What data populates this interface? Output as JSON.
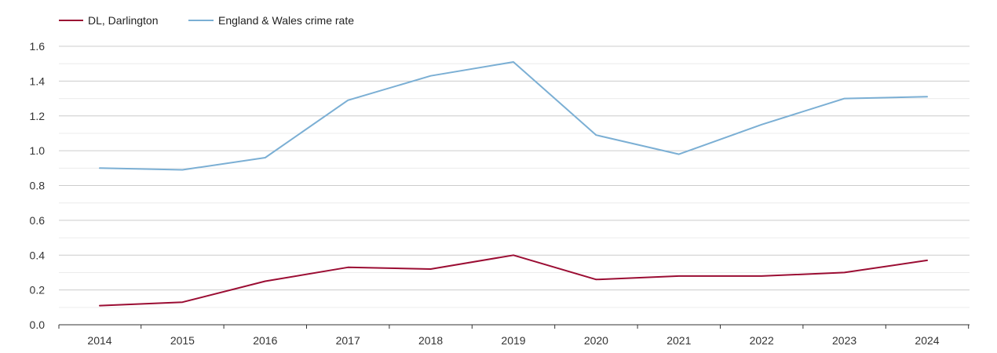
{
  "chart_data": {
    "type": "line",
    "title": "",
    "xlabel": "",
    "ylabel": "",
    "ylim": [
      0,
      1.6
    ],
    "yticks": [
      "0.0",
      "0.2",
      "0.4",
      "0.6",
      "0.8",
      "1.0",
      "1.2",
      "1.4",
      "1.6"
    ],
    "categories": [
      "2014",
      "2015",
      "2016",
      "2017",
      "2018",
      "2019",
      "2020",
      "2021",
      "2022",
      "2023",
      "2024"
    ],
    "legend_position": "top-left",
    "grid": true,
    "series": [
      {
        "name": "DL, Darlington",
        "color": "#9b0d33",
        "values": [
          0.11,
          0.13,
          0.25,
          0.33,
          0.32,
          0.4,
          0.26,
          0.28,
          0.28,
          0.3,
          0.37
        ]
      },
      {
        "name": "England & Wales crime rate",
        "color": "#7bafd4",
        "values": [
          0.9,
          0.89,
          0.96,
          1.29,
          1.43,
          1.51,
          1.09,
          0.98,
          1.15,
          1.3,
          1.31
        ]
      }
    ]
  }
}
